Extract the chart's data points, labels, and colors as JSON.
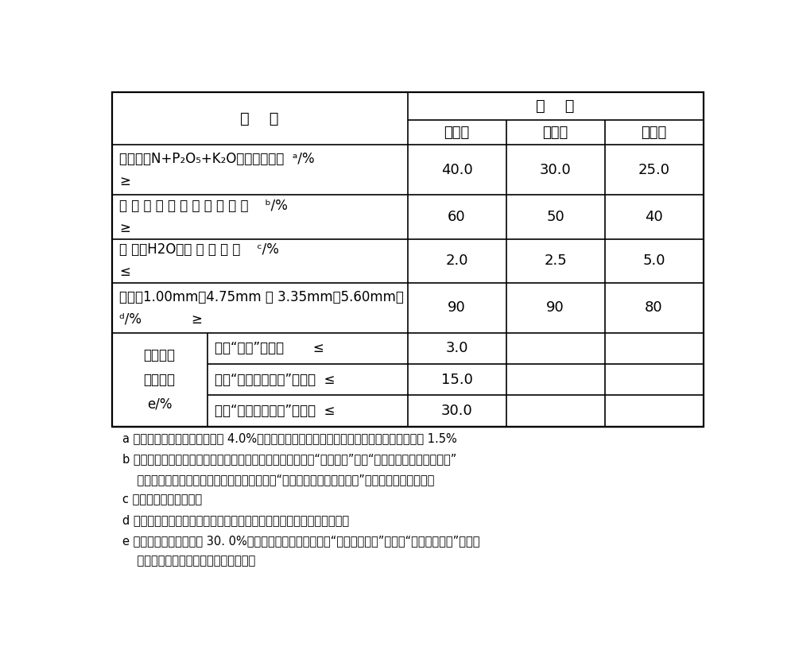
{
  "bg_color": "#ffffff",
  "border_color": "#000000",
  "font_size_main": 13,
  "font_size_small": 11,
  "font_size_footnote": 10.5,
  "sub_header": [
    "高浓度",
    "中浓度",
    "低浓度"
  ],
  "chloride_left": "氯离子的\n质量分数\ne/%",
  "chloride_sub_labels": [
    "未标“含氯”的产品       ≤",
    "标识“含氯（低氯）”的产品  ≤",
    "标识“含氯（中氯）”的产品  ≤"
  ],
  "chloride_values": [
    "3.0",
    "15.0",
    "30.0"
  ],
  "footnote_a": "a 产品的单一养分含量不应小于 4.0%，且单一养分测定值与标明值负偏差的绝对值不应大于 1.5%",
  "footnote_b1": "b 以馒镁磷肖等拘溶性磷肖为基础磷肖并在包装容器上注明为“构溶性磷”时，“水溶性磷占有效磷百分率”",
  "footnote_b2": "    项目不做检验和判定。若为氮、鈗二元肖料，“水溶性磷占有效磷百分率”项目不做检验和判定。",
  "footnote_c": "c 水分为出厂检验项目。",
  "footnote_d": "d 特殊形状或更大颞粒（粉状除外）产品的粒度可由供需双方协议确定。",
  "footnote_e1": "e 氯离子的质量分数大于 30. 0%的产品，应在包装袋上标明“含氯（高氯）”，标识“含氯（高氯）”的产品",
  "footnote_e2": "    氯离子的质量分数可不做检验和判定。"
}
